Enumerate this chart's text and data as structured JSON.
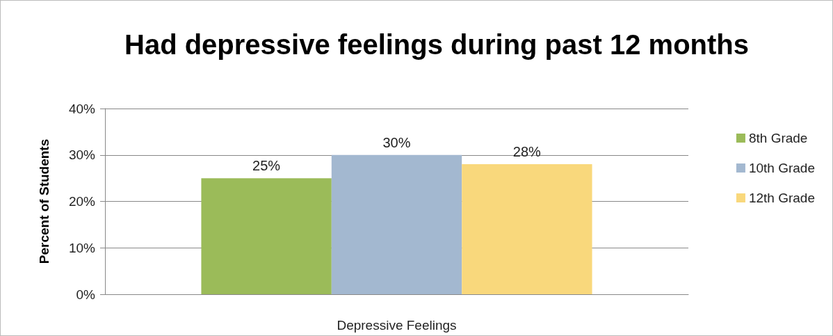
{
  "chart_data": {
    "type": "bar",
    "title": "Had depressive feelings during past 12 months",
    "xlabel": "Depressive Feelings",
    "ylabel": "Percent of Students",
    "categories": [
      null
    ],
    "series": [
      {
        "name": "8th Grade",
        "color": "#9bbb59",
        "values": [
          25
        ],
        "value_labels": [
          "25%"
        ]
      },
      {
        "name": "10th Grade",
        "color": "#a3b8d0",
        "values": [
          30
        ],
        "value_labels": [
          "30%"
        ]
      },
      {
        "name": "12th Grade",
        "color": "#f9d87c",
        "values": [
          28
        ],
        "value_labels": [
          "28%"
        ]
      }
    ],
    "ylim": [
      0,
      40
    ],
    "yticks": [
      {
        "value": 0,
        "label": "0%"
      },
      {
        "value": 10,
        "label": "10%"
      },
      {
        "value": 20,
        "label": "20%"
      },
      {
        "value": 30,
        "label": "30%"
      },
      {
        "value": 40,
        "label": "40%"
      }
    ],
    "grid": "y",
    "legend": "right"
  }
}
